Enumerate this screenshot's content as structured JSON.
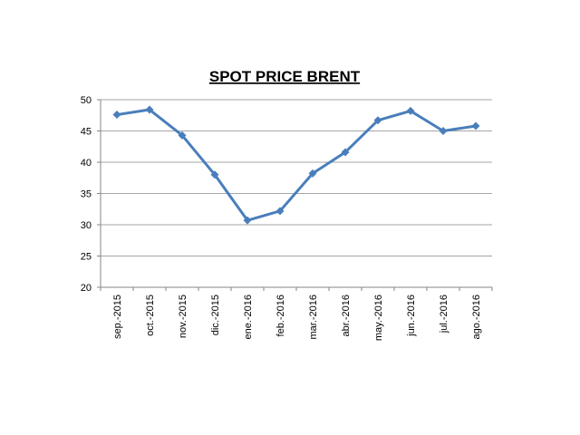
{
  "chart_data": {
    "type": "line",
    "title": "SPOT PRICE BRENT",
    "categories": [
      "sep.-2015",
      "oct.-2015",
      "nov.-2015",
      "dic.-2015",
      "ene.-2016",
      "feb.-2016",
      "mar.-2016",
      "abr.-2016",
      "may.-2016",
      "jun.-2016",
      "jul.-2016",
      "ago.-2016"
    ],
    "values": [
      47.6,
      48.4,
      44.3,
      38.0,
      30.7,
      32.2,
      38.2,
      41.6,
      46.7,
      48.2,
      45.0,
      45.8
    ],
    "color": "#4a7ebb",
    "ylim": [
      20,
      50
    ],
    "yticks": [
      20,
      25,
      30,
      35,
      40,
      45,
      50
    ],
    "grid": true
  }
}
